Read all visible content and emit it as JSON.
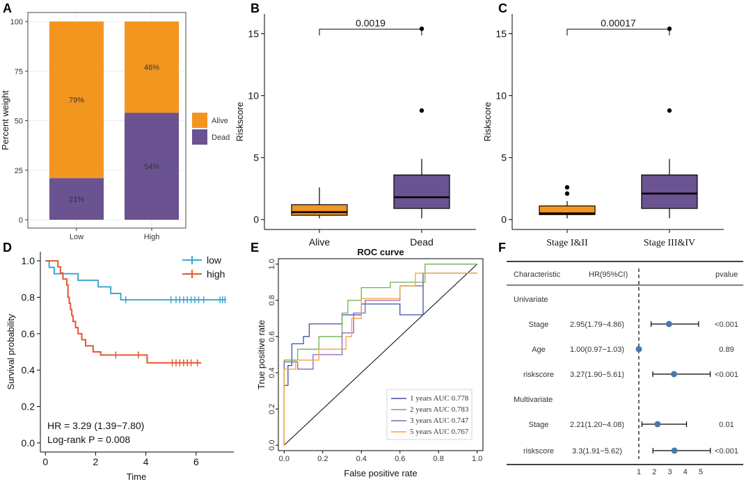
{
  "panels": {
    "A": {
      "label": "A"
    },
    "B": {
      "label": "B"
    },
    "C": {
      "label": "C"
    },
    "D": {
      "label": "D"
    },
    "E": {
      "label": "E"
    },
    "F": {
      "label": "F"
    }
  },
  "chart_data": [
    {
      "id": "A",
      "type": "bar",
      "stacked": true,
      "categories": [
        "Low",
        "High"
      ],
      "series": [
        {
          "name": "Dead",
          "color": "#6a5390",
          "values": [
            21,
            54
          ],
          "labels": [
            "21%",
            "54%"
          ]
        },
        {
          "name": "Alive",
          "color": "#f39620",
          "values": [
            79,
            46
          ],
          "labels": [
            "79%",
            "46%"
          ]
        }
      ],
      "ylabel": "Percent weight",
      "yticks": [
        0,
        25,
        50,
        75,
        100
      ],
      "ylim": [
        0,
        100
      ],
      "legend": [
        {
          "name": "Alive",
          "color": "#f39620"
        },
        {
          "name": "Dead",
          "color": "#6a5390"
        }
      ],
      "legend_position": "right"
    },
    {
      "id": "B",
      "type": "box",
      "categories": [
        "Alive",
        "Dead"
      ],
      "boxes": [
        {
          "q1": 0.35,
          "median": 0.6,
          "q3": 1.2,
          "whisker_low": 0.1,
          "whisker_high": 2.6,
          "outliers": [],
          "color": "#f39620"
        },
        {
          "q1": 0.9,
          "median": 1.8,
          "q3": 3.6,
          "whisker_low": 0.1,
          "whisker_high": 4.9,
          "outliers": [
            8.8,
            15.4
          ],
          "color": "#6a5390"
        }
      ],
      "ylabel": "Riskscore",
      "yticks": [
        0,
        5,
        10,
        15
      ],
      "ylim": [
        -0.8,
        16.6
      ],
      "pvalue": "0.0019"
    },
    {
      "id": "C",
      "type": "box",
      "categories": [
        "Stage I&II",
        "Stage III&IV"
      ],
      "boxes": [
        {
          "q1": 0.4,
          "median": 0.5,
          "q3": 1.1,
          "whisker_low": 0.1,
          "whisker_high": 1.5,
          "outliers": [
            2.1,
            2.6
          ],
          "color": "#f39620"
        },
        {
          "q1": 0.9,
          "median": 2.1,
          "q3": 3.6,
          "whisker_low": 0.1,
          "whisker_high": 4.9,
          "outliers": [
            8.8,
            15.4
          ],
          "color": "#6a5390"
        }
      ],
      "ylabel": "Riskscore",
      "yticks": [
        0,
        5,
        10,
        15
      ],
      "ylim": [
        -0.8,
        16.6
      ],
      "pvalue": "0.00017"
    },
    {
      "id": "D",
      "type": "line",
      "subtype": "kaplan-meier",
      "xlabel": "Time",
      "ylabel": "Survival probability",
      "xticks": [
        0,
        2,
        4,
        6
      ],
      "yticks": [
        "0.0",
        "0.2",
        "0.4",
        "0.6",
        "0.8",
        "1.0"
      ],
      "xlim": [
        -0.2,
        7.5
      ],
      "ylim": [
        -0.05,
        1.05
      ],
      "series": [
        {
          "name": "low",
          "color": "#3fa8cc",
          "steps": [
            [
              0,
              1.0
            ],
            [
              0.15,
              0.964
            ],
            [
              0.35,
              0.929
            ],
            [
              1.3,
              0.893
            ],
            [
              2.1,
              0.857
            ],
            [
              2.6,
              0.821
            ],
            [
              3.0,
              0.786
            ]
          ],
          "end": 7.2,
          "censors": [
            3.2,
            5.0,
            5.2,
            5.35,
            5.5,
            5.65,
            5.8,
            5.95,
            6.1,
            6.3,
            6.95,
            7.05,
            7.15
          ]
        },
        {
          "name": "high",
          "color": "#e4572e",
          "steps": [
            [
              0,
              1.0
            ],
            [
              0.5,
              0.967
            ],
            [
              0.6,
              0.933
            ],
            [
              0.7,
              0.9
            ],
            [
              0.85,
              0.867
            ],
            [
              0.9,
              0.8
            ],
            [
              0.95,
              0.767
            ],
            [
              1.0,
              0.733
            ],
            [
              1.05,
              0.7
            ],
            [
              1.1,
              0.667
            ],
            [
              1.2,
              0.633
            ],
            [
              1.3,
              0.6
            ],
            [
              1.45,
              0.567
            ],
            [
              1.6,
              0.533
            ],
            [
              1.9,
              0.5
            ],
            [
              2.2,
              0.483
            ],
            [
              4.05,
              0.44
            ]
          ],
          "end": 6.2,
          "censors": [
            2.8,
            3.7,
            5.05,
            5.2,
            5.35,
            5.5,
            5.65,
            5.8,
            6.05
          ]
        }
      ],
      "annotations": [
        "HR = 3.29 (1.39−7.80)",
        "Log-rank P = 0.008"
      ]
    },
    {
      "id": "E",
      "type": "line",
      "subtype": "roc",
      "title": "ROC curve",
      "xlabel": "False positive rate",
      "ylabel": "True positive rate",
      "xticks": [
        "0.0",
        "0.2",
        "0.4",
        "0.6",
        "0.8",
        "1.0"
      ],
      "yticks": [
        "0.0",
        "0.2",
        "0.4",
        "0.6",
        "0.8",
        "1.0"
      ],
      "xlim": [
        -0.03,
        1.03
      ],
      "ylim": [
        -0.03,
        1.03
      ],
      "series": [
        {
          "name": "1 years AUC 0.778",
          "color": "#3b4ea8",
          "points": [
            [
              0,
              0
            ],
            [
              0,
              0.33
            ],
            [
              0.02,
              0.33
            ],
            [
              0.02,
              0.44
            ],
            [
              0.04,
              0.44
            ],
            [
              0.04,
              0.56
            ],
            [
              0.1,
              0.56
            ],
            [
              0.1,
              0.6
            ],
            [
              0.13,
              0.6
            ],
            [
              0.13,
              0.67
            ],
            [
              0.3,
              0.67
            ],
            [
              0.3,
              0.72
            ],
            [
              0.4,
              0.72
            ],
            [
              0.4,
              0.78
            ],
            [
              0.6,
              0.78
            ],
            [
              0.6,
              0.72
            ],
            [
              0.72,
              0.72
            ],
            [
              0.72,
              0.95
            ],
            [
              1,
              0.95
            ]
          ]
        },
        {
          "name": "2 years AUC 0.783",
          "color": "#69b34c",
          "points": [
            [
              0,
              0
            ],
            [
              0,
              0.47
            ],
            [
              0.07,
              0.47
            ],
            [
              0.07,
              0.53
            ],
            [
              0.18,
              0.53
            ],
            [
              0.18,
              0.6
            ],
            [
              0.3,
              0.6
            ],
            [
              0.3,
              0.73
            ],
            [
              0.33,
              0.73
            ],
            [
              0.33,
              0.8
            ],
            [
              0.4,
              0.8
            ],
            [
              0.4,
              0.87
            ],
            [
              0.55,
              0.87
            ],
            [
              0.55,
              0.9
            ],
            [
              0.73,
              0.9
            ],
            [
              0.73,
              1.0
            ],
            [
              1,
              1.0
            ]
          ]
        },
        {
          "name": "3 years AUC 0.747",
          "color": "#8a5db0",
          "points": [
            [
              0,
              0
            ],
            [
              0,
              0.46
            ],
            [
              0.07,
              0.46
            ],
            [
              0.07,
              0.42
            ],
            [
              0.15,
              0.42
            ],
            [
              0.15,
              0.5
            ],
            [
              0.3,
              0.5
            ],
            [
              0.3,
              0.62
            ],
            [
              0.36,
              0.62
            ],
            [
              0.36,
              0.73
            ],
            [
              0.42,
              0.73
            ],
            [
              0.42,
              0.8
            ],
            [
              0.6,
              0.8
            ],
            [
              0.6,
              0.88
            ],
            [
              0.72,
              0.88
            ],
            [
              0.72,
              0.95
            ],
            [
              1,
              0.95
            ]
          ]
        },
        {
          "name": "5 years AUC 0.767",
          "color": "#f2a33a",
          "points": [
            [
              0,
              0
            ],
            [
              0,
              0.42
            ],
            [
              0.06,
              0.42
            ],
            [
              0.06,
              0.47
            ],
            [
              0.18,
              0.47
            ],
            [
              0.18,
              0.53
            ],
            [
              0.32,
              0.53
            ],
            [
              0.32,
              0.6
            ],
            [
              0.35,
              0.6
            ],
            [
              0.35,
              0.7
            ],
            [
              0.4,
              0.7
            ],
            [
              0.4,
              0.81
            ],
            [
              0.6,
              0.81
            ],
            [
              0.6,
              0.88
            ],
            [
              0.68,
              0.88
            ],
            [
              0.68,
              0.95
            ],
            [
              1,
              0.95
            ]
          ]
        }
      ],
      "diagonal": true
    },
    {
      "id": "F",
      "type": "forest",
      "headers": {
        "characteristic": "Characteristic",
        "hr": "HR(95%CI)",
        "pvalue": "pvalue"
      },
      "xticks": [
        1,
        2,
        3,
        4,
        5
      ],
      "xlim": [
        0.6,
        5.9
      ],
      "ref_line": 1,
      "rows": [
        {
          "label": "Univariate",
          "section": true
        },
        {
          "label": "Stage",
          "hr": 2.95,
          "low": 1.79,
          "high": 4.86,
          "text": "2.95(1.79−4.86)",
          "p": "<0.001"
        },
        {
          "label": "Age",
          "hr": 1.0,
          "low": 0.97,
          "high": 1.03,
          "text": "1.00(0.97−1.03)",
          "p": "0.89"
        },
        {
          "label": "riskscore",
          "hr": 3.27,
          "low": 1.9,
          "high": 5.61,
          "text": "3.27(1.90−5.61)",
          "p": "<0.001"
        },
        {
          "label": "Multivariate",
          "section": true
        },
        {
          "label": "Stage",
          "hr": 2.21,
          "low": 1.2,
          "high": 4.08,
          "text": "2.21(1.20−4.08)",
          "p": "0.01"
        },
        {
          "label": "riskscore",
          "hr": 3.3,
          "low": 1.91,
          "high": 5.62,
          "text": "3.3(1.91−5.62)",
          "p": "<0.001"
        }
      ],
      "point_color": "#4a78ad"
    }
  ]
}
